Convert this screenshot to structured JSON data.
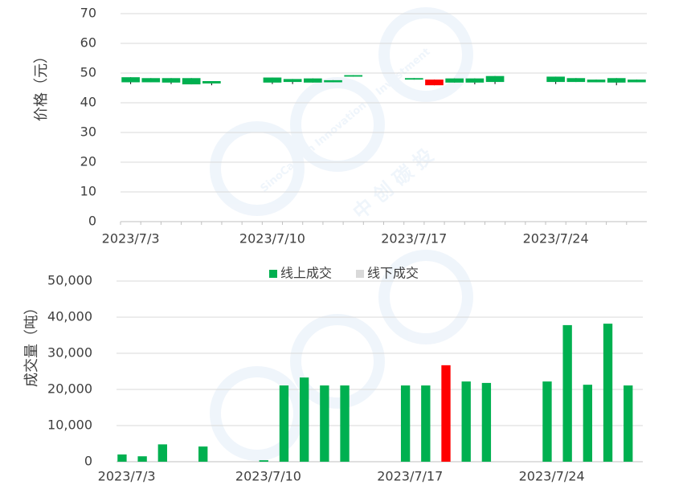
{
  "watermark": {
    "en": "SinoCarbon Innovation & Investment",
    "cn": "中 创 碳 投"
  },
  "chart_data": [
    {
      "type": "candlestick",
      "ylabel": "价格（元）",
      "categories": [
        "2023/7/3",
        null,
        null,
        null,
        null,
        null,
        null,
        "2023/7/10",
        null,
        null,
        null,
        null,
        null,
        null,
        "2023/7/17",
        null,
        null,
        null,
        null,
        null,
        null,
        "2023/7/24",
        null,
        null,
        null,
        null
      ],
      "open": [
        48.6,
        48.3,
        48.3,
        48.3,
        47.3,
        null,
        null,
        48.5,
        48.0,
        48.2,
        47.6,
        49.3,
        null,
        null,
        48.3,
        45.9,
        48.2,
        48.2,
        49.0,
        null,
        null,
        48.8,
        48.3,
        47.8,
        48.3,
        47.8
      ],
      "close": [
        46.9,
        46.9,
        46.8,
        46.2,
        46.5,
        null,
        null,
        46.8,
        47.0,
        46.8,
        46.9,
        48.8,
        null,
        null,
        47.8,
        47.8,
        46.8,
        46.8,
        47.0,
        null,
        null,
        47.0,
        47.0,
        46.9,
        46.8,
        46.9
      ],
      "high": [
        48.6,
        48.3,
        48.3,
        48.3,
        47.3,
        null,
        null,
        48.5,
        48.0,
        48.2,
        47.6,
        49.3,
        null,
        null,
        48.3,
        47.8,
        48.2,
        48.2,
        49.0,
        null,
        null,
        48.8,
        48.3,
        47.8,
        48.3,
        47.8
      ],
      "low": [
        46.3,
        46.9,
        46.3,
        46.2,
        45.9,
        null,
        null,
        46.3,
        46.3,
        46.8,
        46.9,
        48.8,
        null,
        null,
        47.8,
        45.9,
        46.8,
        46.2,
        46.3,
        null,
        null,
        46.3,
        47.0,
        46.9,
        45.9,
        46.9
      ],
      "up_color": "#ff0000",
      "down_color": "#00b050",
      "ylim": [
        0,
        70
      ],
      "yticks": [
        0,
        10,
        20,
        30,
        40,
        50,
        60,
        70
      ],
      "grid": true
    },
    {
      "type": "bar",
      "ylabel": "成交量（吨）",
      "categories": [
        "2023/7/3",
        null,
        null,
        null,
        null,
        null,
        null,
        "2023/7/10",
        null,
        null,
        null,
        null,
        null,
        null,
        "2023/7/17",
        null,
        null,
        null,
        null,
        null,
        null,
        "2023/7/24",
        null,
        null,
        null,
        null
      ],
      "series": [
        {
          "name": "线上成交",
          "color": "#00b050",
          "values": [
            2000,
            1500,
            4800,
            null,
            4200,
            null,
            null,
            400,
            21100,
            23300,
            21100,
            21100,
            null,
            null,
            21100,
            21100,
            26700,
            22200,
            21800,
            null,
            null,
            22200,
            37800,
            21300,
            38200,
            21100
          ]
        },
        {
          "name": "线下成交",
          "color": "#d9d9d9",
          "values": [
            null,
            null,
            null,
            null,
            null,
            null,
            null,
            null,
            null,
            null,
            null,
            null,
            null,
            null,
            null,
            null,
            null,
            null,
            null,
            null,
            null,
            null,
            null,
            null,
            null,
            null
          ]
        }
      ],
      "highlight_index": 16,
      "highlight_color": "#ff0000",
      "ylim": [
        0,
        50000
      ],
      "yticks": [
        0,
        {
          "value": 10000,
          "label": "10,000"
        },
        {
          "value": 20000,
          "label": "20,000"
        },
        {
          "value": 30000,
          "label": "30,000"
        },
        {
          "value": 40000,
          "label": "40,000"
        },
        {
          "value": 50000,
          "label": "50,000"
        }
      ],
      "grid": true,
      "legend": "top"
    }
  ]
}
